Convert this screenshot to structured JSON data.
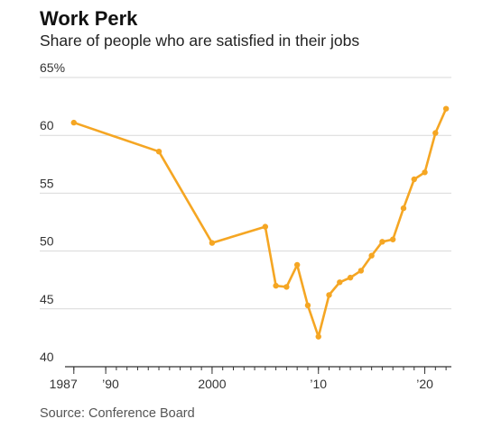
{
  "header": {
    "title": "Work Perk",
    "subtitle": "Share of people who are satisfied in their jobs"
  },
  "footer": {
    "source": "Source: Conference Board"
  },
  "colors": {
    "line": "#f5a623",
    "grid": "#d9d9d9",
    "axis": "#333333"
  },
  "chart_data": {
    "type": "line",
    "title": "Work Perk",
    "subtitle": "Share of people who are satisfied in their jobs",
    "xlabel": "",
    "ylabel": "",
    "ylim": [
      40,
      65
    ],
    "xlim": [
      1986,
      2022.5
    ],
    "y_ticks": [
      40,
      45,
      50,
      55,
      60,
      65
    ],
    "y_tick_labels": [
      "40",
      "45",
      "50",
      "55",
      "60",
      "65%"
    ],
    "x_ticks": [
      1987,
      1990,
      2000,
      2010,
      2020
    ],
    "x_tick_labels": [
      "1987",
      "’90",
      "2000",
      "’10",
      "’20"
    ],
    "grid": true,
    "series": [
      {
        "x": [
          1987,
          1995,
          2000,
          2005,
          2006,
          2007,
          2008,
          2009,
          2010,
          2011,
          2012,
          2013,
          2014,
          2015,
          2016,
          2017,
          2018,
          2019,
          2020,
          2021,
          2022
        ],
        "values": [
          61.1,
          58.6,
          50.7,
          52.1,
          47.0,
          46.9,
          48.8,
          45.3,
          42.6,
          46.2,
          47.3,
          47.7,
          48.3,
          49.6,
          50.8,
          51.0,
          53.7,
          56.2,
          56.8,
          60.2,
          62.3
        ]
      }
    ]
  }
}
